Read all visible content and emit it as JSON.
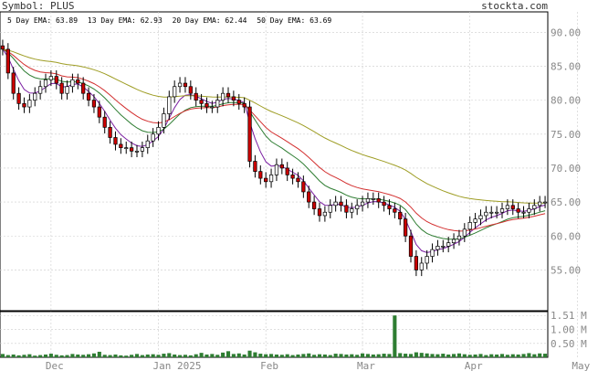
{
  "header": {
    "symbol_label": "Symbol: PLUS",
    "site": "stockta.com"
  },
  "emas": [
    {
      "label": "5 Day EMA: 63.89",
      "color": "#7b1fa2"
    },
    {
      "label": "13 Day EMA: 62.93",
      "color": "#2e7d32"
    },
    {
      "label": "20 Day EMA: 62.44",
      "color": "#d32f2f"
    },
    {
      "label": "50 Day EMA: 63.69",
      "color": "#9e9d24"
    }
  ],
  "colors": {
    "up": "#ffffff",
    "down": "#cc0000",
    "volume": "#2e7d32",
    "grid": "#cccccc",
    "axis_text": "#888888"
  },
  "chart_data": {
    "type": "candlestick",
    "price_axis": {
      "ticks": [
        "90.00",
        "85.00",
        "80.00",
        "75.00",
        "70.00",
        "65.00",
        "60.00",
        "55.00"
      ],
      "values": [
        90,
        85,
        80,
        75,
        70,
        65,
        60,
        55
      ],
      "ylim": [
        49,
        93
      ]
    },
    "volume_axis": {
      "ticks": [
        "1.51 M",
        "1.00 M",
        "0.50 M"
      ],
      "values": [
        1.51,
        1.0,
        0.5
      ],
      "ylim": [
        0,
        1.65
      ]
    },
    "x_labels": [
      {
        "label": "Dec",
        "index": 9
      },
      {
        "label": "Jan 2025",
        "index": 29
      },
      {
        "label": "Feb",
        "index": 49
      },
      {
        "label": "Mar",
        "index": 67
      },
      {
        "label": "Apr",
        "index": 87
      },
      {
        "label": "May",
        "index": 107
      }
    ],
    "close": [
      87.5,
      84,
      81,
      79.5,
      79,
      80,
      81,
      82,
      83,
      83.5,
      82.5,
      81,
      82,
      83,
      82.5,
      81,
      80,
      79,
      77.5,
      76,
      74.5,
      73.5,
      73,
      73,
      72.5,
      72.5,
      73,
      74,
      75,
      76,
      78,
      80.5,
      82,
      82.5,
      82,
      81,
      80,
      79.5,
      79,
      79,
      80,
      81,
      80.5,
      80,
      79.5,
      79,
      71,
      69.5,
      68.5,
      68,
      69,
      70.5,
      70,
      69,
      68.5,
      68,
      66.5,
      65,
      64,
      63,
      63.5,
      64.5,
      65,
      64.5,
      63.5,
      64,
      64.5,
      65,
      65.5,
      65.5,
      65,
      64.5,
      64,
      63.5,
      62.5,
      60,
      57,
      55,
      56,
      57,
      58,
      58.5,
      58.5,
      59,
      59.5,
      60,
      61,
      62,
      62.5,
      63,
      63.5,
      63.5,
      63.5,
      64,
      64.5,
      64,
      63.5,
      63.5,
      64,
      64.5,
      65,
      65
    ],
    "ohlc_note": "",
    "volume": [
      0.12,
      0.08,
      0.1,
      0.07,
      0.09,
      0.11,
      0.06,
      0.08,
      0.1,
      0.13,
      0.09,
      0.07,
      0.08,
      0.12,
      0.1,
      0.09,
      0.11,
      0.14,
      0.2,
      0.09,
      0.08,
      0.1,
      0.07,
      0.06,
      0.09,
      0.12,
      0.08,
      0.1,
      0.11,
      0.09,
      0.13,
      0.15,
      0.1,
      0.08,
      0.09,
      0.07,
      0.11,
      0.16,
      0.1,
      0.12,
      0.09,
      0.17,
      0.22,
      0.12,
      0.14,
      0.1,
      0.24,
      0.18,
      0.13,
      0.11,
      0.12,
      0.1,
      0.09,
      0.11,
      0.08,
      0.1,
      0.12,
      0.14,
      0.09,
      0.11,
      0.1,
      0.08,
      0.13,
      0.12,
      0.1,
      0.11,
      0.09,
      0.14,
      0.12,
      0.1,
      0.11,
      0.13,
      0.12,
      1.51,
      0.15,
      0.13,
      0.12,
      0.18,
      0.16,
      0.14,
      0.12,
      0.11,
      0.13,
      0.1,
      0.12,
      0.14,
      0.11,
      0.09,
      0.1,
      0.12,
      0.08,
      0.11,
      0.1,
      0.12,
      0.09,
      0.11,
      0.1,
      0.12,
      0.15,
      0.11,
      0.14,
      0.13
    ]
  }
}
